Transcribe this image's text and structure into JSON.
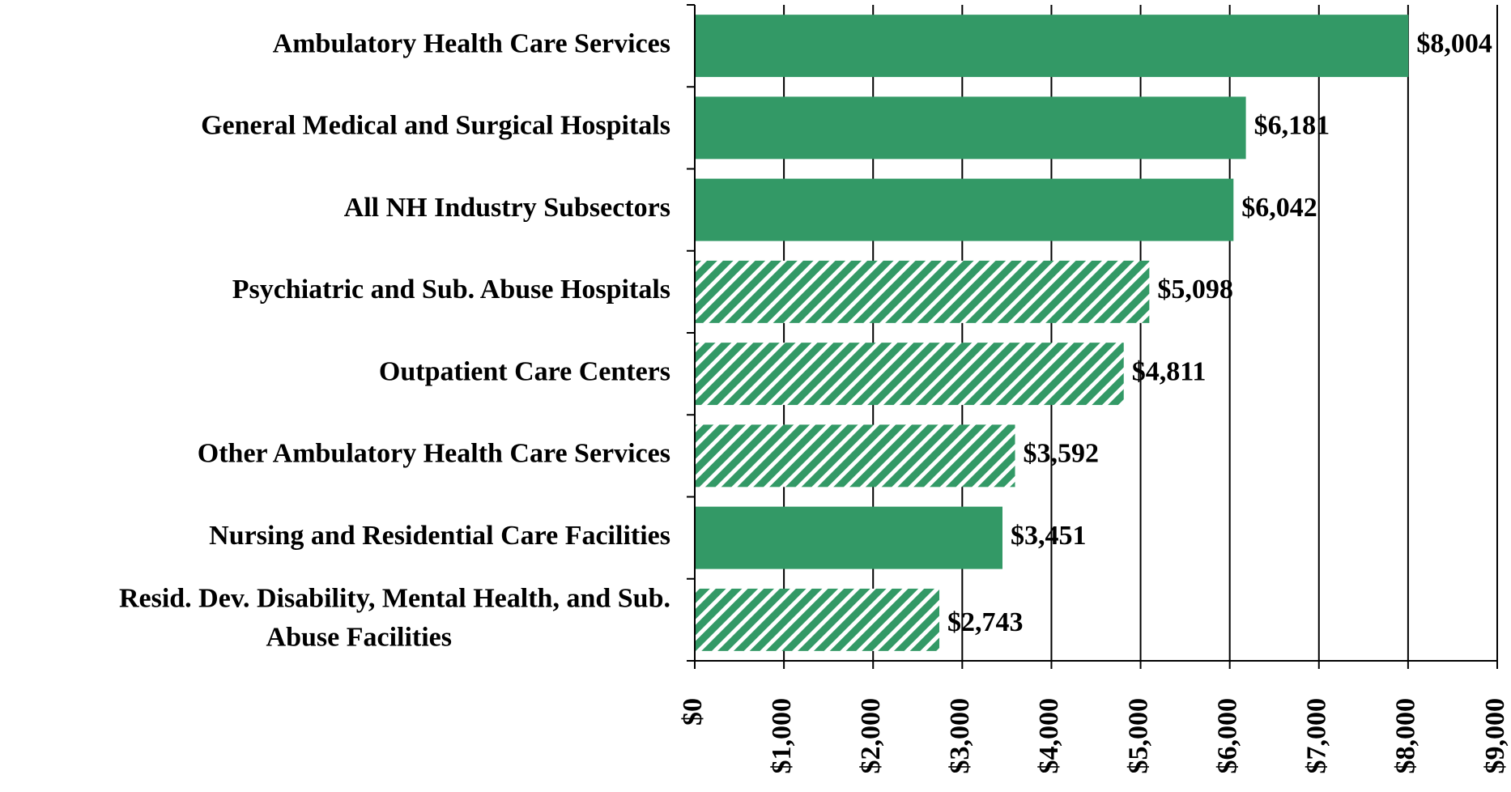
{
  "chart_data": {
    "type": "bar",
    "orientation": "horizontal",
    "categories": [
      "Ambulatory Health Care Services",
      "General Medical and Surgical Hospitals",
      "All NH Industry Subsectors",
      "Psychiatric and Sub. Abuse Hospitals",
      "Outpatient Care Centers",
      "Other Ambulatory Health Care Services",
      "Nursing and Residential Care Facilities",
      "Resid. Dev. Disability, Mental Health, and Sub.\nAbuse Facilities"
    ],
    "values": [
      8004,
      6181,
      6042,
      5098,
      4811,
      3592,
      3451,
      2743
    ],
    "value_labels": [
      "$8,004",
      "$6,181",
      "$6,042",
      "$5,098",
      "$4,811",
      "$3,592",
      "$3,451",
      "$2,743"
    ],
    "patterns": [
      "solid",
      "solid",
      "solid",
      "hatched",
      "hatched",
      "hatched",
      "solid",
      "hatched"
    ],
    "color": "#339966",
    "xlim": [
      0,
      9000
    ],
    "xticks": [
      {
        "value": 0,
        "label": "$0"
      },
      {
        "value": 1000,
        "label": "$1,000"
      },
      {
        "value": 2000,
        "label": "$2,000"
      },
      {
        "value": 3000,
        "label": "$3,000"
      },
      {
        "value": 4000,
        "label": "$4,000"
      },
      {
        "value": 5000,
        "label": "$5,000"
      },
      {
        "value": 6000,
        "label": "$6,000"
      },
      {
        "value": 7000,
        "label": "$7,000"
      },
      {
        "value": 8000,
        "label": "$8,000"
      },
      {
        "value": 9000,
        "label": "$9,000"
      }
    ],
    "grid": true
  }
}
